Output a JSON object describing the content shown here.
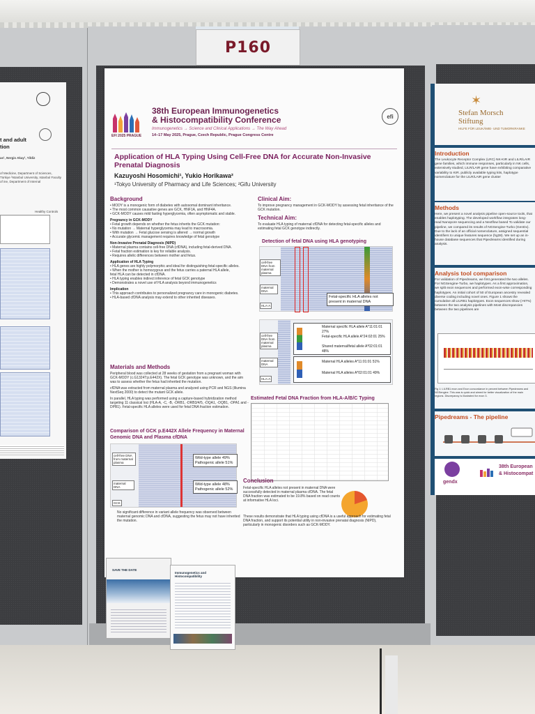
{
  "board": {
    "number": "P160"
  },
  "poster": {
    "conference": {
      "title_line1": "38th European Immunogenetics",
      "title_line2": "& Histocompatibility Conference",
      "tagline": "Immunogenetics → Science and Clinical Applications → The Way Ahead",
      "dates_venue": "14–17 May 2025, Prague, Czech Republic, Prague Congress Centre",
      "logo_text": "EFI 2025 PRAGUE",
      "efi_mark": "efi"
    },
    "title": "Application of HLA Typing Using Cell-Free DNA for Accurate Non-Invasive Prenatal Diagnosis",
    "authors": "Kazuyoshi Hosomichi¹, Yukio Horikawa²",
    "affiliations": "¹Tokyo University of Pharmacy and Life Sciences; ²Gifu University",
    "background": {
      "heading": "Background",
      "bullets": [
        "• MODY is a monogenic form of diabetes with autosomal dominant inheritance.",
        "• The most common causative genes are GCK, HNF1A, and HNF4A.",
        "• GCK-MODY causes mild fasting hyperglycemia, often asymptomatic and stable."
      ],
      "pregnancy_heading": "Pregnancy in GCK-MODY",
      "pregnancy_bullets": [
        "• Fetal growth depends on whether the fetus inherits the GCK mutation:",
        "• No mutation → Maternal hyperglycemia may lead to macrosomia.",
        "• With mutation → Fetal glucose sensing is altered → normal growth",
        "• Accurate glycemic management requires knowledge of fetal genotype"
      ],
      "nipd_heading": "Non-Invasive Prenatal Diagnosis (NIPD)",
      "nipd_bullets": [
        "• Maternal plasma contains cell-free DNA (cfDNA), including fetal-derived DNA.",
        "• Fetal fraction estimation is key for reliable analysis.",
        "• Requires allelic differences between mother and fetus."
      ],
      "hla_heading": "Application of HLA Typing",
      "hla_bullets": [
        "• HLA genes are highly polymorphic and ideal for distinguishing fetal-specific alleles.",
        "• When the mother is homozygous and the fetus carries a paternal HLA allele,",
        "fetal HLA can be detected in cfDNA.",
        "• HLA typing enables indirect inference of fetal GCK genotype",
        "• Demonstrates a novel use of HLA analysis beyond immunogenetics"
      ],
      "impl_heading": "Implication",
      "impl_bullets": [
        "• This approach contributes to personalized pregnancy care in monogenic diabetes.",
        "• HLA-based cfDNA analysis may extend to other inherited diseases."
      ]
    },
    "methods": {
      "heading": "Materials and Methods",
      "text": [
        "Peripheral blood was collected at 28 weeks of gestation from a pregnant woman with GCK-MODY (c.G1324T:p.E442X). The fetal GCK genotype was unknown, and the aim was to assess whether the fetus had inherited the mutation.",
        "cfDNA was extracted from maternal plasma and analyzed using PCR and NGS (Illumina NextSeq 2000) to detect the mutant GCK allele.",
        "In parallel, HLA typing was performed using a capture-based hybridization method targeting 11 classical loci (HLA-A, -C, -B, -DRB1, -DRB3/4/5, -DQA1, -DQB1, -DPA1 and -DPB1). Fetal-specific HLA alleles were used for fetal DNA fraction estimation."
      ]
    },
    "comparison": {
      "heading": "Comparison of GCK p.E442X Allele Frequency in Maternal Genomic DNA and Plasma cfDNA",
      "labels": [
        "cell-free DNA from maternal plasma",
        "maternal DNA",
        "GCK"
      ],
      "callout1": [
        "Wild-type allele  49%",
        "Pathogenic allele  51%"
      ],
      "callout2": [
        "Wild-type allele  48%",
        "Pathogenic allele  52%"
      ],
      "note": "No significant difference in variant allele frequency was observed between maternal genomic DNA and cfDNA, suggesting the fetus may not have inherited the mutation."
    },
    "clinical_aim": {
      "heading": "Clinical Aim:",
      "text": "To improve pregnancy management in GCK-MODY by assessing fetal inheritance of the GCK mutation."
    },
    "technical_aim": {
      "heading": "Technical Aim:",
      "text": "To evaluate HLA typing of maternal cfDNA for detecting fetal-specific alleles and estimating fetal GCK genotype indirectly."
    },
    "detection": {
      "heading": "Detection of fetal DNA using HLA genotyping",
      "labels1": [
        "cell-free DNA from maternal plasma",
        "maternal DNA",
        "HLA-A"
      ],
      "callout_fetal": "Fetal-specific HLA alleles not present in maternal DNA",
      "labels2": [
        "cell-free DNA from maternal plasma",
        "maternal DNA",
        "HLA-A"
      ],
      "alleles": [
        "Maternal specific HLA allele  A*11:01:01   27%",
        "Fetal-specific HLA allele  A*24:02:01   25%",
        "Shared maternal/fetal allele  A*02:01:01   48%",
        "Maternal HLA alleles  A*11:01:01   51%",
        "Maternal HLA alleles  A*02:01:01   49%"
      ]
    },
    "fraction": {
      "heading": "Estimated Fetal DNA Fraction from HLA-A/B/C Typing"
    },
    "conclusion": {
      "heading": "Conclusion",
      "text1": "Fetal-specific HLA alleles not present in maternal DNA were successfully detected in maternal plasma cfDNA. The fetal DNA fraction was estimated to be 19.8% based on read counts at informative HLA loci.",
      "text2": "These results demonstrate that HLA typing using cfDNA is a useful approach for estimating fetal DNA fraction, and support its potential utility in non-invasive prenatal diagnosis (NIPD), particularly in monogenic disorders such as GCK-MODY."
    }
  },
  "left_poster": {
    "title_fragment": [
      "t and adult",
      "tion"
    ],
    "authors_fragment": "as¹, Nergis Akay¹, Yildiz",
    "affil_fragment": "of Medicine, Department of Sciences, Türkiye ³Istanbul University, Istanbul Faculty of ine, Department of Internal",
    "table_head": "Healthy Controls"
  },
  "right_poster": {
    "foundation_name_1": "Stefan Morsch",
    "foundation_name_2": "Stiftung",
    "foundation_tagline": "HILFE FÜR LEUKÄMIE- UND TUMORKRANKE",
    "intro_heading": "Introduction",
    "intro_text": "The Leukocyte Receptor Complex (LRC) NK-KIR and LILR/LAIR gene families, which immune responses, particularly in NK cells, extensively studied, LILR/LAIR gene have exhibiting comparative variability to KIR. publicly available typing kits, haplotype nomenclature for the LILR/LAIR gene cluster",
    "methods_heading": "Methods",
    "methods_text": "Here, we present a novel analysis pipeline open-source tools, that enables haplotyping. The developed workflow integrates long-read Nanopore sequencing and a Nextflow based To validate our pipeline, we compared its results of NGSengine-Turbo (GenDx). Due to the lack of an official nomenclature, assigned sequential identifiers to unique features sequence (hg38). We set up an in-house database sequences that Pipedreams identified during analysis.",
    "tool_heading": "Analysis tool comparison",
    "tool_text": "For validation of Pipedreams, we first generated the two alleles. For NGSengine-Turbo, we haplotypes. As a first approximation, we split exon sequences and performed exon-wise corresponding haplotypes. An initial cohort of 50 of European ancestry revealed diverse coding including novel ones. Figure 1 shows the cumulative all LILRB1 haplotypes. Exon sequences show (>97%) between the two analysis pipelines with Most discrepancies between the two pipelines are",
    "chart_caption": "Fig 1: LILRB1 exon and Exon concordance in percent between Pipedreams and NGSengine. This was is quick and aimed for better visualization of the main regions. Discrepancy is illustrated for exon 3.",
    "pipeline_heading": "Pipedreams - The pipeline",
    "brand": "gendx",
    "conf_fragment_1": "38th European",
    "conf_fragment_2": "& Histocompat"
  },
  "leaflets": {
    "leaflet1_title": "SAVE THE DATE",
    "leaflet2_title": "Immunogenetics and Histocompatibility"
  }
}
